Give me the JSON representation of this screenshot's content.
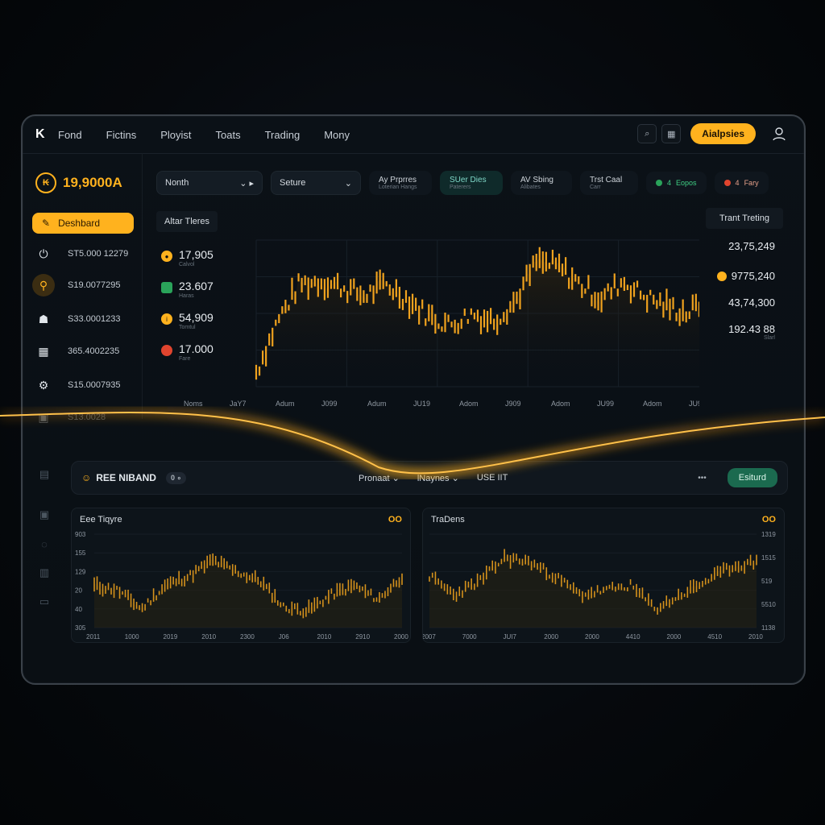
{
  "nav": {
    "logo": "K",
    "items": [
      "Fond",
      "Fictins",
      "Ployist",
      "Toats",
      "Trading",
      "Mony"
    ],
    "right_button": "Aialpsies"
  },
  "sidebar": {
    "balance": "19,9000A",
    "dashboard_label": "Deshbard",
    "items": [
      {
        "icon": "power-icon",
        "value": "ST5.000 12279"
      },
      {
        "icon": "pin-icon",
        "value": "S19.0077295"
      },
      {
        "icon": "user-icon",
        "value": "S33.0001233"
      },
      {
        "icon": "grid-icon",
        "value": "365.4002235"
      },
      {
        "icon": "gear-icon",
        "value": "S15.0007935"
      },
      {
        "icon": "lock-icon",
        "value": "S13.0028"
      }
    ]
  },
  "filters": {
    "dropdown1": "Nonth",
    "dropdown2": "Seture",
    "chips": [
      {
        "label": "Ay Prprres",
        "sub": "Loterian Hangs"
      },
      {
        "label": "SUer Dies",
        "sub": "Paterers"
      },
      {
        "label": "AV Sbing",
        "sub": "Alibates"
      },
      {
        "label": "Trst Caal",
        "sub": "Carr"
      }
    ],
    "tag1": {
      "code": "4",
      "label": "Eopos"
    },
    "tag2": {
      "code": "4",
      "label": "Fary"
    }
  },
  "main_chart": {
    "title": "Altar Tleres",
    "left_stats": [
      {
        "value": "17,905",
        "sub": "Calvol",
        "color": "#ffb21e"
      },
      {
        "value": "23.607",
        "sub": "Haras",
        "color": "#2aa35a"
      },
      {
        "value": "54,909",
        "sub": "Tomtul",
        "color": "#ffb21e"
      },
      {
        "value": "17.000",
        "sub": "Fare",
        "color": "#e0442e"
      }
    ],
    "x_labels": [
      "Noms",
      "JaY7",
      "Adum",
      "J099",
      "Adum",
      "JU19",
      "Adom",
      "J909",
      "Adom",
      "JU99",
      "Adom",
      "JU99"
    ],
    "right_title": "Trant Treting",
    "right_values": [
      "23,75,249",
      "9775,240",
      "43,74,300",
      "192.43 88"
    ],
    "right_sub": "Slarl"
  },
  "bottom_bar": {
    "title": "REE NIBAND",
    "pill": "0 ∘",
    "menu": [
      "Pronaat ⌄",
      "lNaynes ⌄",
      "USE IIT"
    ],
    "dots": "•••",
    "button": "Esiturd"
  },
  "panel_left": {
    "title": "Eee Tiqyre",
    "corner": "OO",
    "y_labels": [
      "903",
      "155",
      "129",
      "20",
      "40",
      "305"
    ],
    "x_labels": [
      "2011",
      "1000",
      "2019",
      "2010",
      "2300",
      "J06",
      "2010",
      "2910",
      "2000"
    ]
  },
  "panel_right": {
    "title": "TraDens",
    "corner": "OO",
    "y_labels": [
      "1319",
      "1515",
      "519",
      "5510",
      "1138"
    ],
    "x_labels": [
      "2007",
      "7000",
      "JUI7",
      "2000",
      "2000",
      "4410",
      "2000",
      "4510",
      "2010"
    ]
  },
  "colors": {
    "accent": "#ffb21e",
    "green": "#1b6a4f",
    "bg": "#0a0f14"
  }
}
